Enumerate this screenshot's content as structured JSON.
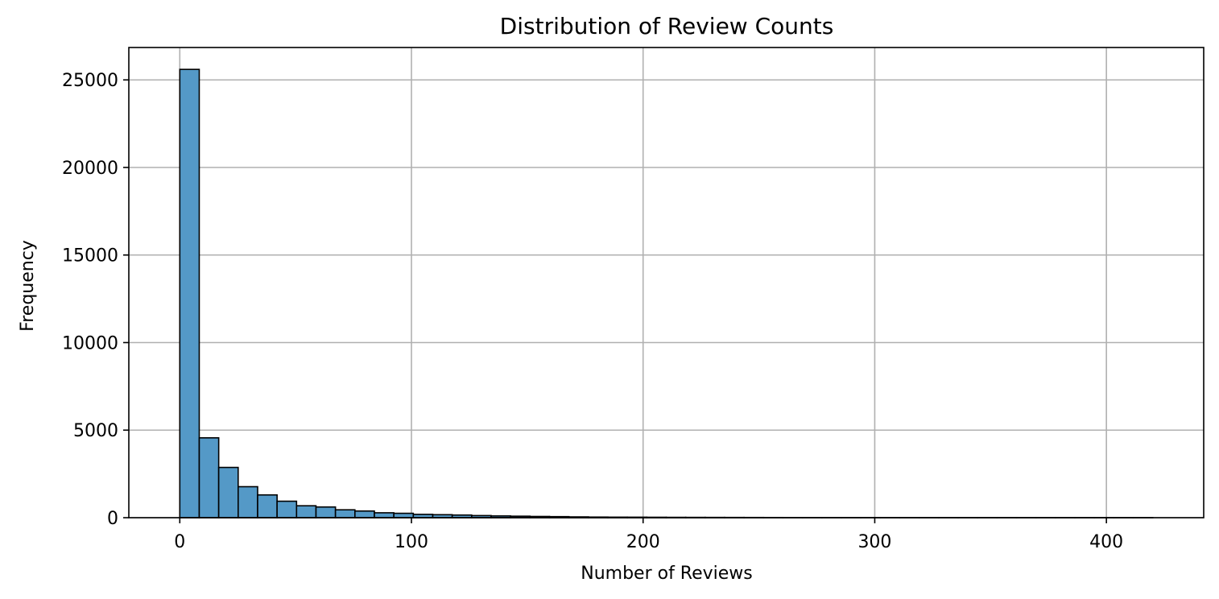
{
  "chart_data": {
    "type": "bar",
    "subtype": "histogram",
    "title": "Distribution of Review Counts",
    "xlabel": "Number of Reviews",
    "ylabel": "Frequency",
    "xlim": [
      -22,
      442
    ],
    "ylim": [
      0,
      26850
    ],
    "xticks": [
      0,
      100,
      200,
      300,
      400
    ],
    "yticks": [
      0,
      5000,
      10000,
      15000,
      20000,
      25000
    ],
    "grid": true,
    "bar_color": "#5499c7",
    "edge_color": "#000000",
    "bin_width": 8.4,
    "bin_start": 0,
    "values": [
      25600,
      4560,
      2870,
      1770,
      1300,
      940,
      680,
      610,
      450,
      380,
      280,
      250,
      190,
      170,
      150,
      120,
      100,
      85,
      70,
      60,
      45,
      35,
      30,
      28,
      24,
      20,
      18,
      16,
      14,
      12,
      10,
      9,
      8,
      7,
      6,
      6,
      5,
      5,
      4,
      4,
      3,
      3,
      3,
      2,
      2,
      2,
      2,
      1,
      1,
      1
    ]
  }
}
